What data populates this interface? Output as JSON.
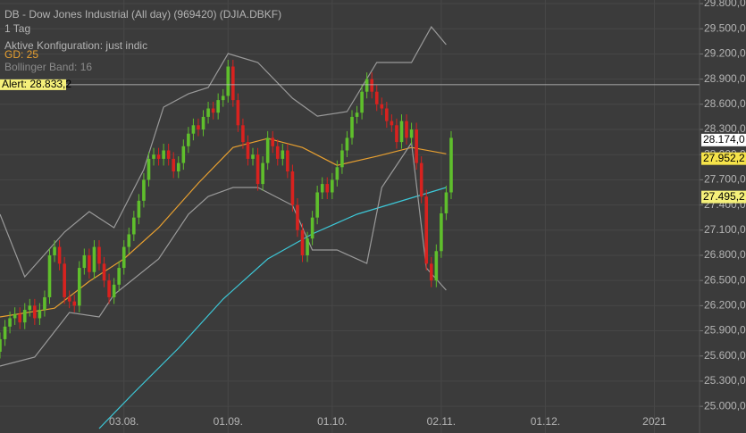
{
  "chart_data": {
    "type": "candlestick",
    "title": "DB - Dow Jones Industrial (All day) (969420) (DJIA.DBKF)",
    "subtitle": "1 Tag",
    "config": "Aktive Konfiguration: just indic",
    "alert": {
      "value": 28833.2,
      "label": "Alert: 28.833,2"
    },
    "up_color": "#5fbf2c",
    "down_color": "#d8221f",
    "xlim": [
      0,
      141.1
    ],
    "xticks": [
      {
        "value": 25,
        "label": "03.08."
      },
      {
        "value": 46,
        "label": "01.09."
      },
      {
        "value": 67,
        "label": "01.10."
      },
      {
        "value": 89,
        "label": "02.11."
      },
      {
        "value": 110,
        "label": "01.12."
      },
      {
        "value": 132,
        "label": "2021"
      }
    ],
    "ylim": [
      24682,
      29843
    ],
    "yticks": [
      {
        "value": 25000,
        "label": "25.000,0"
      },
      {
        "value": 25300,
        "label": "25.300,0"
      },
      {
        "value": 25600,
        "label": "25.600,0"
      },
      {
        "value": 25900,
        "label": "25.900,0"
      },
      {
        "value": 26200,
        "label": "26.200,0"
      },
      {
        "value": 26500,
        "label": "26.500,0"
      },
      {
        "value": 26800,
        "label": "26.800,0"
      },
      {
        "value": 27100,
        "label": "27.100,0"
      },
      {
        "value": 27400,
        "label": "27.400,0"
      },
      {
        "value": 27700,
        "label": "27.700,0"
      },
      {
        "value": 28000,
        "label": "28.000,0"
      },
      {
        "value": 28300,
        "label": "28.300,0"
      },
      {
        "value": 28600,
        "label": "28.600,0"
      },
      {
        "value": 28900,
        "label": "28.900,0"
      },
      {
        "value": 29200,
        "label": "29.200,0"
      },
      {
        "value": 29500,
        "label": "29.500,0"
      },
      {
        "value": 29800,
        "label": "29.800,0"
      }
    ],
    "grid": true,
    "open": [
      25650,
      25800,
      25950,
      26050,
      26100,
      26000,
      26150,
      26200,
      26050,
      26150,
      26300,
      26800,
      26900,
      26700,
      26300,
      26250,
      26200,
      26650,
      26800,
      26600,
      26900,
      26700,
      26500,
      26300,
      26450,
      26650,
      26900,
      27050,
      27250,
      27450,
      27700,
      27950,
      28000,
      27950,
      28050,
      27950,
      27800,
      27900,
      28100,
      28250,
      28350,
      28300,
      28450,
      28550,
      28500,
      28650,
      28700,
      29050,
      28650,
      28350,
      28150,
      27950,
      28000,
      27650,
      27900,
      28200,
      28100,
      27950,
      28050,
      27800,
      27400,
      27100,
      26800,
      27000,
      27250,
      27550,
      27650,
      27550,
      27700,
      27850,
      28050,
      28200,
      28450,
      28500,
      28750,
      28900,
      28750,
      28600,
      28550,
      28400,
      28350,
      28150,
      28400,
      28200,
      28300,
      27900,
      27500,
      26700,
      26500,
      26850,
      27300,
      27550
    ],
    "high": [
      25880,
      26030,
      26130,
      26180,
      26180,
      26230,
      26280,
      26280,
      26230,
      26380,
      26880,
      26980,
      26980,
      26780,
      26380,
      26330,
      26730,
      26880,
      26880,
      26980,
      26980,
      26780,
      26580,
      26530,
      26730,
      26980,
      27130,
      27330,
      27530,
      27780,
      28030,
      28080,
      28080,
      28130,
      28130,
      28030,
      27980,
      28180,
      28330,
      28430,
      28430,
      28530,
      28630,
      28630,
      28730,
      28780,
      29130,
      29130,
      28730,
      28430,
      28230,
      28080,
      28080,
      27980,
      28280,
      28280,
      28180,
      28130,
      28130,
      27880,
      27480,
      27180,
      27080,
      27330,
      27630,
      27730,
      27730,
      27780,
      27930,
      28130,
      28280,
      28530,
      28580,
      28830,
      28980,
      28980,
      28830,
      28680,
      28630,
      28480,
      28430,
      28480,
      28480,
      28380,
      28380,
      27980,
      27580,
      26780,
      26930,
      27380,
      27630,
      28280
    ],
    "low": [
      25570,
      25720,
      25870,
      25970,
      25920,
      25920,
      26070,
      25970,
      25970,
      26070,
      26220,
      26720,
      26620,
      26220,
      26170,
      26120,
      26120,
      26570,
      26520,
      26520,
      26620,
      26420,
      26220,
      26220,
      26370,
      26570,
      26820,
      26970,
      27170,
      27370,
      27620,
      27870,
      27870,
      27870,
      27870,
      27720,
      27720,
      27820,
      28020,
      28170,
      28220,
      28220,
      28370,
      28420,
      28420,
      28570,
      28620,
      28570,
      28270,
      28070,
      27870,
      27870,
      27570,
      27570,
      27820,
      28020,
      27870,
      27870,
      27720,
      27320,
      27020,
      26720,
      26720,
      26920,
      27170,
      27470,
      27470,
      27470,
      27620,
      27770,
      27970,
      28120,
      28370,
      28420,
      28670,
      28670,
      28520,
      28470,
      28320,
      28270,
      28070,
      28070,
      28120,
      28120,
      27820,
      27420,
      26620,
      26420,
      26420,
      26770,
      27220,
      27470
    ],
    "close": [
      25800,
      25950,
      26050,
      26100,
      26000,
      26150,
      26200,
      26050,
      26150,
      26300,
      26800,
      26900,
      26700,
      26300,
      26250,
      26200,
      26650,
      26800,
      26600,
      26900,
      26700,
      26500,
      26300,
      26450,
      26650,
      26900,
      27050,
      27250,
      27450,
      27700,
      27950,
      28000,
      27950,
      28050,
      27950,
      27800,
      27900,
      28100,
      28250,
      28350,
      28300,
      28450,
      28550,
      28500,
      28650,
      28700,
      29050,
      28650,
      28350,
      28150,
      27950,
      28000,
      27650,
      27900,
      28200,
      28100,
      27950,
      28050,
      27800,
      27400,
      27100,
      26800,
      27000,
      27250,
      27550,
      27650,
      27550,
      27700,
      27850,
      28050,
      28200,
      28450,
      28500,
      28750,
      28900,
      28750,
      28600,
      28550,
      28400,
      28350,
      28150,
      28400,
      28200,
      28300,
      27900,
      27500,
      26700,
      26500,
      26850,
      27300,
      27550,
      28200
    ],
    "lines": [
      {
        "name": "GD: 25",
        "color": "#e8a030",
        "x": [
          0,
          11,
          18,
          25,
          32,
          40,
          47,
          54,
          61,
          68,
          76,
          83,
          90
        ],
        "values": [
          26065,
          26170,
          26490,
          26757,
          27130,
          27660,
          28085,
          28193,
          28085,
          27872,
          27980,
          28085,
          28010
        ]
      },
      {
        "color": "#3cc8d8",
        "x": [
          20,
          27,
          36,
          45,
          54,
          63,
          72,
          81,
          90
        ],
        "values": [
          24735,
          25161,
          25693,
          26278,
          26757,
          27055,
          27289,
          27449,
          27608
        ]
      },
      {
        "name": "Bollinger Band: 16",
        "color": "#9a9a9a",
        "x": [
          0,
          5,
          13,
          18,
          23,
          29,
          33,
          38,
          42,
          46,
          52,
          59,
          64,
          70,
          76,
          83,
          87,
          90
        ],
        "values": [
          27289,
          26544,
          27076,
          27321,
          27129,
          27821,
          28566,
          28725,
          28800,
          29204,
          29098,
          28672,
          28459,
          28513,
          29098,
          29098,
          29523,
          29311
        ]
      },
      {
        "color": "#9a9a9a",
        "x": [
          0,
          7,
          14,
          20,
          23,
          32,
          38,
          42,
          47,
          52,
          59,
          63,
          68,
          74,
          77,
          83,
          86,
          90
        ],
        "values": [
          25480,
          25587,
          26119,
          26065,
          26331,
          26757,
          27289,
          27502,
          27608,
          27608,
          27395,
          26863,
          26863,
          26704,
          27608,
          28140,
          26650,
          26385
        ]
      }
    ],
    "price_labels": [
      {
        "value": 28174.0,
        "label": "28.174,0",
        "color": "#ffffff"
      },
      {
        "value": 27952.2,
        "label": "27.952,2",
        "color": "#f5e34a"
      },
      {
        "value": 27495.2,
        "label": "27.495,2",
        "color": "#f5f07a"
      }
    ]
  }
}
